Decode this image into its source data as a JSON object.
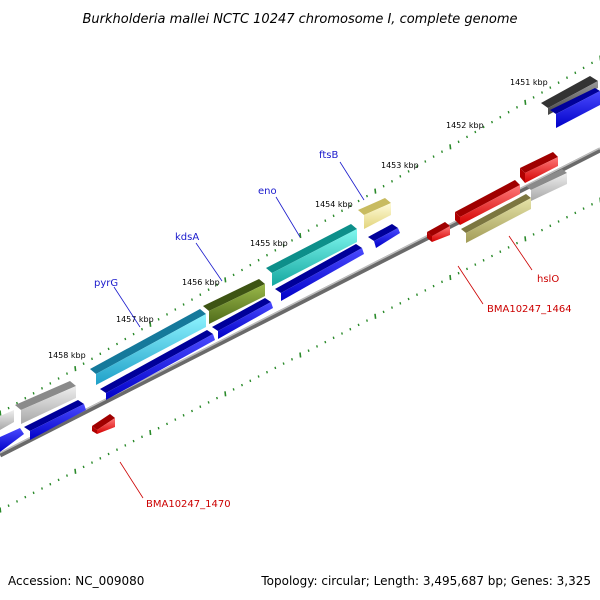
{
  "title": "Burkholderia mallei NCTC 10247 chromosome I, complete genome",
  "footer": {
    "accession": "Accession: NC_009080",
    "summary": "Topology: circular; Length: 3,495,687 bp; Genes: 3,325"
  },
  "ticks": [
    {
      "label": "1451 kbp",
      "kbp": 1451
    },
    {
      "label": "1452 kbp",
      "kbp": 1452
    },
    {
      "label": "1453 kbp",
      "kbp": 1453
    },
    {
      "label": "1454 kbp",
      "kbp": 1454
    },
    {
      "label": "1455 kbp",
      "kbp": 1455
    },
    {
      "label": "1456 kbp",
      "kbp": 1456
    },
    {
      "label": "1457 kbp",
      "kbp": 1457
    },
    {
      "label": "1458 kbp",
      "kbp": 1458
    }
  ],
  "gene_labels": [
    {
      "text": "ftsB",
      "color": "#1a1acc"
    },
    {
      "text": "eno",
      "color": "#1a1acc"
    },
    {
      "text": "kdsA",
      "color": "#1a1acc"
    },
    {
      "text": "pyrG",
      "color": "#1a1acc"
    },
    {
      "text": "hslO",
      "color": "#cc0000"
    },
    {
      "text": "BMA10247_1464",
      "color": "#cc0000"
    },
    {
      "text": "BMA10247_1470",
      "color": "#cc0000"
    }
  ],
  "colors": {
    "backbone": "#888888",
    "cds_forward": "#0000ee",
    "cds_reverse": "#ee0000",
    "tick": "#2a8a2a"
  }
}
